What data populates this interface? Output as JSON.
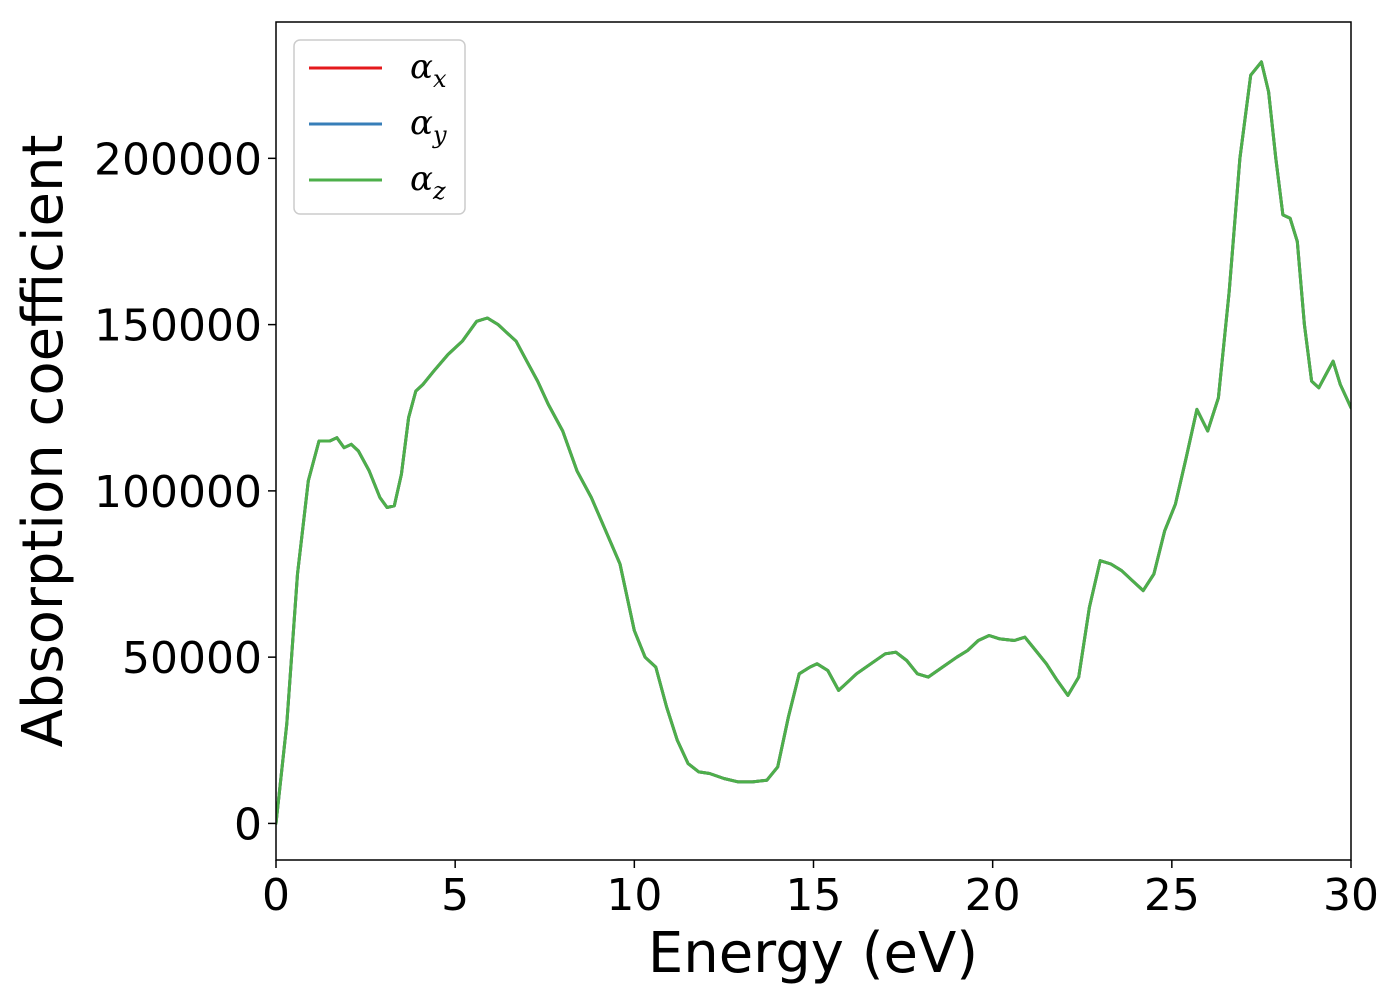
{
  "chart_data": {
    "type": "line",
    "title": "",
    "xlabel": "Energy (eV)",
    "ylabel": "Absorption coefficient",
    "xlim": [
      0,
      30
    ],
    "ylim": [
      -11000,
      241000
    ],
    "xticks": [
      "0",
      "5",
      "10",
      "15",
      "20",
      "25",
      "30"
    ],
    "yticks": [
      "0",
      "50000",
      "100000",
      "150000",
      "200000"
    ],
    "grid": false,
    "legend_position": "top-left",
    "series": [
      {
        "name": "αx",
        "symbol": "α",
        "subscript": "x",
        "color": "#e41a1c",
        "x": [
          0,
          0.3,
          0.6,
          0.9,
          1.2,
          1.5,
          1.7,
          1.9,
          2.1,
          2.3,
          2.6,
          2.9,
          3.1,
          3.3,
          3.5,
          3.7,
          3.9,
          4.1,
          4.4,
          4.8,
          5.2,
          5.6,
          5.9,
          6.2,
          6.4,
          6.7,
          7.0,
          7.3,
          7.6,
          8.0,
          8.4,
          8.8,
          9.2,
          9.6,
          10.0,
          10.3,
          10.6,
          10.9,
          11.2,
          11.5,
          11.8,
          12.1,
          12.5,
          12.9,
          13.3,
          13.7,
          14.0,
          14.3,
          14.6,
          14.9,
          15.1,
          15.4,
          15.7,
          15.9,
          16.2,
          16.6,
          17.0,
          17.3,
          17.6,
          17.9,
          18.2,
          18.6,
          19.0,
          19.3,
          19.6,
          19.9,
          20.2,
          20.6,
          20.9,
          21.2,
          21.5,
          21.8,
          22.1,
          22.4,
          22.7,
          23.0,
          23.3,
          23.6,
          23.9,
          24.2,
          24.5,
          24.8,
          25.1,
          25.4,
          25.7,
          26.0,
          26.3,
          26.6,
          26.9,
          27.2,
          27.5,
          27.7,
          27.9,
          28.1,
          28.3,
          28.5,
          28.7,
          28.9,
          29.1,
          29.3,
          29.5,
          29.7,
          30.0
        ],
        "y": [
          0,
          30000,
          75000,
          103000,
          115000,
          115000,
          116000,
          113000,
          114000,
          112000,
          106000,
          98000,
          95000,
          95500,
          105000,
          122000,
          130000,
          132000,
          136000,
          141000,
          145000,
          151000,
          152000,
          150000,
          148000,
          145000,
          139000,
          133000,
          126000,
          118000,
          106000,
          98000,
          88000,
          78000,
          58000,
          50000,
          47000,
          35000,
          25000,
          18000,
          15500,
          15000,
          13500,
          12500,
          12500,
          13000,
          17000,
          32000,
          45000,
          47000,
          48000,
          46000,
          40000,
          42000,
          45000,
          48000,
          51000,
          51500,
          49000,
          45000,
          44000,
          47000,
          50000,
          52000,
          55000,
          56500,
          55500,
          55000,
          56000,
          52000,
          48000,
          43000,
          38500,
          44000,
          65000,
          79000,
          78000,
          76000,
          73000,
          70000,
          75000,
          88000,
          96000,
          110000,
          124500,
          118000,
          128000,
          160000,
          200000,
          225000,
          229000,
          220000,
          200000,
          183000,
          182000,
          175000,
          150000,
          133000,
          131000,
          135000,
          139000,
          132000,
          125000
        ]
      },
      {
        "name": "αy",
        "symbol": "α",
        "subscript": "y",
        "color": "#377eb8",
        "x": [
          0,
          0.3,
          0.6,
          0.9,
          1.2,
          1.5,
          1.7,
          1.9,
          2.1,
          2.3,
          2.6,
          2.9,
          3.1,
          3.3,
          3.5,
          3.7,
          3.9,
          4.1,
          4.4,
          4.8,
          5.2,
          5.6,
          5.9,
          6.2,
          6.4,
          6.7,
          7.0,
          7.3,
          7.6,
          8.0,
          8.4,
          8.8,
          9.2,
          9.6,
          10.0,
          10.3,
          10.6,
          10.9,
          11.2,
          11.5,
          11.8,
          12.1,
          12.5,
          12.9,
          13.3,
          13.7,
          14.0,
          14.3,
          14.6,
          14.9,
          15.1,
          15.4,
          15.7,
          15.9,
          16.2,
          16.6,
          17.0,
          17.3,
          17.6,
          17.9,
          18.2,
          18.6,
          19.0,
          19.3,
          19.6,
          19.9,
          20.2,
          20.6,
          20.9,
          21.2,
          21.5,
          21.8,
          22.1,
          22.4,
          22.7,
          23.0,
          23.3,
          23.6,
          23.9,
          24.2,
          24.5,
          24.8,
          25.1,
          25.4,
          25.7,
          26.0,
          26.3,
          26.6,
          26.9,
          27.2,
          27.5,
          27.7,
          27.9,
          28.1,
          28.3,
          28.5,
          28.7,
          28.9,
          29.1,
          29.3,
          29.5,
          29.7,
          30.0
        ],
        "y": [
          0,
          30000,
          75000,
          103000,
          115000,
          115000,
          116000,
          113000,
          114000,
          112000,
          106000,
          98000,
          95000,
          95500,
          105000,
          122000,
          130000,
          132000,
          136000,
          141000,
          145000,
          151000,
          152000,
          150000,
          148000,
          145000,
          139000,
          133000,
          126000,
          118000,
          106000,
          98000,
          88000,
          78000,
          58000,
          50000,
          47000,
          35000,
          25000,
          18000,
          15500,
          15000,
          13500,
          12500,
          12500,
          13000,
          17000,
          32000,
          45000,
          47000,
          48000,
          46000,
          40000,
          42000,
          45000,
          48000,
          51000,
          51500,
          49000,
          45000,
          44000,
          47000,
          50000,
          52000,
          55000,
          56500,
          55500,
          55000,
          56000,
          52000,
          48000,
          43000,
          38500,
          44000,
          65000,
          79000,
          78000,
          76000,
          73000,
          70000,
          75000,
          88000,
          96000,
          110000,
          124500,
          118000,
          128000,
          160000,
          200000,
          225000,
          229000,
          220000,
          200000,
          183000,
          182000,
          175000,
          150000,
          133000,
          131000,
          135000,
          139000,
          132000,
          125000
        ]
      },
      {
        "name": "αz",
        "symbol": "α",
        "subscript": "z",
        "color": "#4daf4a",
        "x": [
          0,
          0.3,
          0.6,
          0.9,
          1.2,
          1.5,
          1.7,
          1.9,
          2.1,
          2.3,
          2.6,
          2.9,
          3.1,
          3.3,
          3.5,
          3.7,
          3.9,
          4.1,
          4.4,
          4.8,
          5.2,
          5.6,
          5.9,
          6.2,
          6.4,
          6.7,
          7.0,
          7.3,
          7.6,
          8.0,
          8.4,
          8.8,
          9.2,
          9.6,
          10.0,
          10.3,
          10.6,
          10.9,
          11.2,
          11.5,
          11.8,
          12.1,
          12.5,
          12.9,
          13.3,
          13.7,
          14.0,
          14.3,
          14.6,
          14.9,
          15.1,
          15.4,
          15.7,
          15.9,
          16.2,
          16.6,
          17.0,
          17.3,
          17.6,
          17.9,
          18.2,
          18.6,
          19.0,
          19.3,
          19.6,
          19.9,
          20.2,
          20.6,
          20.9,
          21.2,
          21.5,
          21.8,
          22.1,
          22.4,
          22.7,
          23.0,
          23.3,
          23.6,
          23.9,
          24.2,
          24.5,
          24.8,
          25.1,
          25.4,
          25.7,
          26.0,
          26.3,
          26.6,
          26.9,
          27.2,
          27.5,
          27.7,
          27.9,
          28.1,
          28.3,
          28.5,
          28.7,
          28.9,
          29.1,
          29.3,
          29.5,
          29.7,
          30.0
        ],
        "y": [
          0,
          30000,
          75000,
          103000,
          115000,
          115000,
          116000,
          113000,
          114000,
          112000,
          106000,
          98000,
          95000,
          95500,
          105000,
          122000,
          130000,
          132000,
          136000,
          141000,
          145000,
          151000,
          152000,
          150000,
          148000,
          145000,
          139000,
          133000,
          126000,
          118000,
          106000,
          98000,
          88000,
          78000,
          58000,
          50000,
          47000,
          35000,
          25000,
          18000,
          15500,
          15000,
          13500,
          12500,
          12500,
          13000,
          17000,
          32000,
          45000,
          47000,
          48000,
          46000,
          40000,
          42000,
          45000,
          48000,
          51000,
          51500,
          49000,
          45000,
          44000,
          47000,
          50000,
          52000,
          55000,
          56500,
          55500,
          55000,
          56000,
          52000,
          48000,
          43000,
          38500,
          44000,
          65000,
          79000,
          78000,
          76000,
          73000,
          70000,
          75000,
          88000,
          96000,
          110000,
          124500,
          118000,
          128000,
          160000,
          200000,
          225000,
          229000,
          220000,
          200000,
          183000,
          182000,
          175000,
          150000,
          133000,
          131000,
          135000,
          139000,
          132000,
          125000
        ]
      }
    ]
  }
}
